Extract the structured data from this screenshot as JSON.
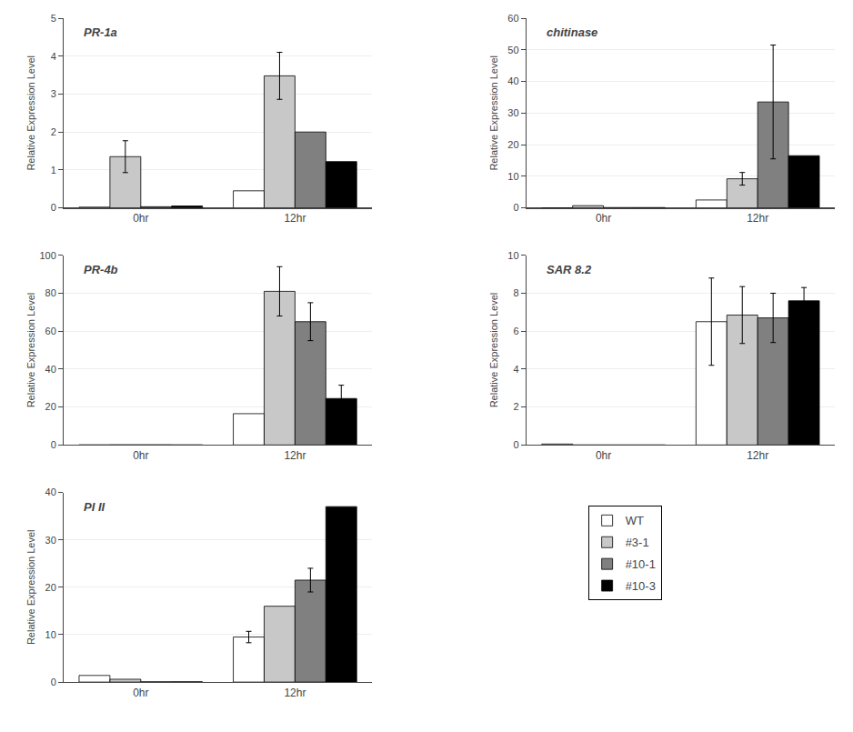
{
  "chart_data": [
    {
      "type": "bar",
      "title": "PR-1a",
      "y_label": "Relative Expression Level",
      "categories": [
        "0hr",
        "12hr"
      ],
      "series": [
        {
          "name": "WT",
          "color": "#ffffff",
          "values": [
            0.02,
            0.45
          ],
          "errors": [
            0.0,
            0.0
          ]
        },
        {
          "name": "#3-1",
          "color": "#c8c8c8",
          "values": [
            1.35,
            3.48
          ],
          "errors": [
            0.42,
            0.62
          ]
        },
        {
          "name": "#10-1",
          "color": "#808080",
          "values": [
            0.03,
            2.0
          ],
          "errors": [
            0.0,
            0.0
          ]
        },
        {
          "name": "#10-3",
          "color": "#000000",
          "values": [
            0.05,
            1.22
          ],
          "errors": [
            0.0,
            0.0
          ]
        }
      ],
      "ylim": [
        0,
        5
      ],
      "yticks": [
        0,
        1,
        2,
        3,
        4,
        5
      ],
      "legend": "lower right"
    },
    {
      "type": "bar",
      "title": "chitinase",
      "y_label": "Relative Expression Level",
      "categories": [
        "0hr",
        "12hr"
      ],
      "series": [
        {
          "name": "WT",
          "color": "#ffffff",
          "values": [
            0.0,
            2.5
          ],
          "errors": [
            0.0,
            0.0
          ]
        },
        {
          "name": "#3-1",
          "color": "#c8c8c8",
          "values": [
            0.7,
            9.2
          ],
          "errors": [
            0.0,
            2.0
          ]
        },
        {
          "name": "#10-1",
          "color": "#808080",
          "values": [
            0.1,
            33.5
          ],
          "errors": [
            0.0,
            18.0
          ]
        },
        {
          "name": "#10-3",
          "color": "#000000",
          "values": [
            0.1,
            16.5
          ],
          "errors": [
            0.0,
            0.0
          ]
        }
      ],
      "ylim": [
        0,
        60
      ],
      "yticks": [
        0,
        10,
        20,
        30,
        40,
        50,
        60
      ]
    },
    {
      "type": "bar",
      "title": "PR-4b",
      "y_label": "Relative Expression Level",
      "categories": [
        "0hr",
        "12hr"
      ],
      "series": [
        {
          "name": "WT",
          "color": "#ffffff",
          "values": [
            0.05,
            16.5
          ],
          "errors": [
            0.0,
            0.0
          ]
        },
        {
          "name": "#3-1",
          "color": "#c8c8c8",
          "values": [
            0.1,
            81.0
          ],
          "errors": [
            0.0,
            13.0
          ]
        },
        {
          "name": "#10-1",
          "color": "#808080",
          "values": [
            0.1,
            65.0
          ],
          "errors": [
            0.0,
            10.0
          ]
        },
        {
          "name": "#10-3",
          "color": "#000000",
          "values": [
            0.05,
            24.5
          ],
          "errors": [
            0.0,
            7.0
          ]
        }
      ],
      "ylim": [
        0,
        100
      ],
      "yticks": [
        0,
        20,
        40,
        60,
        80,
        100
      ]
    },
    {
      "type": "bar",
      "title": "SAR 8.2",
      "y_label": "Relative Expression Level",
      "categories": [
        "0hr",
        "12hr"
      ],
      "series": [
        {
          "name": "WT",
          "color": "#ffffff",
          "values": [
            0.05,
            6.5
          ],
          "errors": [
            0.0,
            2.3
          ]
        },
        {
          "name": "#3-1",
          "color": "#c8c8c8",
          "values": [
            0.0,
            6.85
          ],
          "errors": [
            0.0,
            1.5
          ]
        },
        {
          "name": "#10-1",
          "color": "#808080",
          "values": [
            0.0,
            6.7
          ],
          "errors": [
            0.0,
            1.3
          ]
        },
        {
          "name": "#10-3",
          "color": "#000000",
          "values": [
            0.0,
            7.6
          ],
          "errors": [
            0.0,
            0.7
          ]
        }
      ],
      "ylim": [
        0,
        10
      ],
      "yticks": [
        0,
        2,
        4,
        6,
        8,
        10
      ]
    },
    {
      "type": "bar",
      "title": "PI II",
      "y_label": "Relative Expression Level",
      "categories": [
        "0hr",
        "12hr"
      ],
      "series": [
        {
          "name": "WT",
          "color": "#ffffff",
          "values": [
            1.4,
            9.5
          ],
          "errors": [
            0.0,
            1.2
          ]
        },
        {
          "name": "#3-1",
          "color": "#c8c8c8",
          "values": [
            0.6,
            16.0
          ],
          "errors": [
            0.0,
            0.0
          ]
        },
        {
          "name": "#10-1",
          "color": "#808080",
          "values": [
            0.05,
            21.5
          ],
          "errors": [
            0.0,
            2.5
          ]
        },
        {
          "name": "#10-3",
          "color": "#000000",
          "values": [
            0.05,
            37.0
          ],
          "errors": [
            0.0,
            0.0
          ]
        }
      ],
      "ylim": [
        0,
        40
      ],
      "yticks": [
        0,
        10,
        20,
        30,
        40
      ]
    }
  ]
}
